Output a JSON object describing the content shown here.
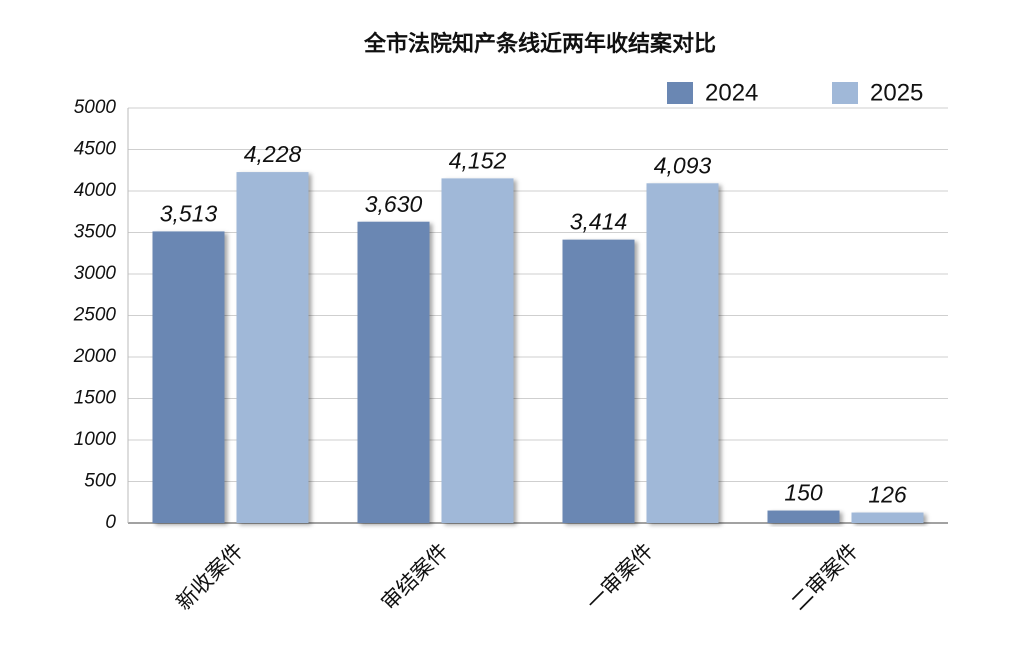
{
  "chart_data": {
    "type": "bar",
    "title": "全市法院知产条线近两年收结案对比",
    "categories": [
      "新收案件",
      "审结案件",
      "一审案件",
      "二审案件"
    ],
    "series": [
      {
        "name": "2024",
        "color": "#6a87b3",
        "values": [
          3513,
          3630,
          3414,
          150
        ],
        "value_labels": [
          "3,513",
          "3,630",
          "3,414",
          "150"
        ]
      },
      {
        "name": "2025",
        "color": "#a0b8d8",
        "values": [
          4228,
          4152,
          4093,
          126
        ],
        "value_labels": [
          "4,228",
          "4,152",
          "4,093",
          "126"
        ]
      }
    ],
    "ylim": [
      0,
      5000
    ],
    "yticks": [
      0,
      500,
      1000,
      1500,
      2000,
      2500,
      3000,
      3500,
      4000,
      4500,
      5000
    ],
    "grid": true,
    "legend": "top-right"
  }
}
